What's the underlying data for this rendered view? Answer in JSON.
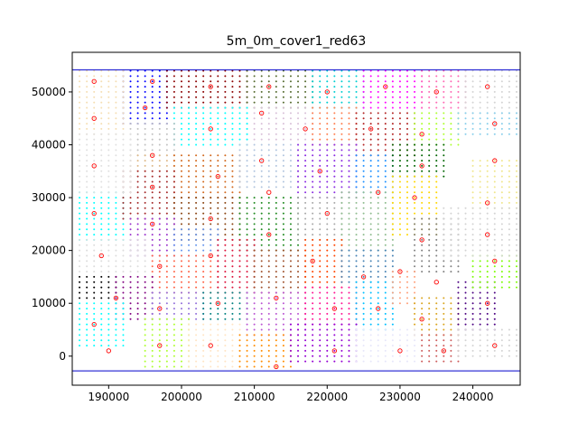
{
  "chart_data": {
    "type": "scatter",
    "title": "5m_0m_cover1_red63",
    "xlabel": "",
    "ylabel": "",
    "xlim": [
      185000,
      246500
    ],
    "ylim": [
      -5500,
      57500
    ],
    "x_ticks": [
      190000,
      200000,
      210000,
      220000,
      230000,
      240000
    ],
    "x_tick_labels": [
      "190000",
      "200000",
      "210000",
      "220000",
      "230000",
      "240000"
    ],
    "y_ticks": [
      0,
      10000,
      20000,
      30000,
      40000,
      50000
    ],
    "y_tick_labels": [
      "0",
      "10000",
      "20000",
      "30000",
      "40000",
      "50000"
    ],
    "grid": false,
    "legend": "none",
    "boundary_lines": {
      "y_values": [
        54200,
        -2800
      ],
      "color": "#0000cc"
    },
    "grid_spacing": 1000,
    "clusters": [
      {
        "color": "#0000ff",
        "x_range": [
          192000,
          198000
        ],
        "y_range": [
          44000,
          54000
        ]
      },
      {
        "color": "#8b0000",
        "x_range": [
          198000,
          209000
        ],
        "y_range": [
          47000,
          54000
        ]
      },
      {
        "color": "#556b2f",
        "x_range": [
          209000,
          218000
        ],
        "y_range": [
          47000,
          54000
        ]
      },
      {
        "color": "#00ced1",
        "x_range": [
          218000,
          225000
        ],
        "y_range": [
          47000,
          54000
        ]
      },
      {
        "color": "#ff00ff",
        "x_range": [
          225000,
          233000
        ],
        "y_range": [
          47000,
          54000
        ]
      },
      {
        "color": "#ff69b4",
        "x_range": [
          233000,
          239000
        ],
        "y_range": [
          47000,
          54000
        ]
      },
      {
        "color": "#d3d3d3",
        "x_range": [
          239000,
          246000
        ],
        "y_range": [
          46000,
          54000
        ]
      },
      {
        "color": "#f5deb3",
        "x_range": [
          186000,
          192000
        ],
        "y_range": [
          42000,
          54000
        ]
      },
      {
        "color": "#d8bfd8",
        "x_range": [
          209000,
          218000
        ],
        "y_range": [
          41000,
          47000
        ]
      },
      {
        "color": "#00ffff",
        "x_range": [
          199000,
          209000
        ],
        "y_range": [
          40000,
          47000
        ]
      },
      {
        "color": "#c0c0c0",
        "x_range": [
          193000,
          199000
        ],
        "y_range": [
          38000,
          44000
        ]
      },
      {
        "color": "#ff7f50",
        "x_range": [
          218000,
          224000
        ],
        "y_range": [
          40000,
          47000
        ]
      },
      {
        "color": "#b22222",
        "x_range": [
          224000,
          232000
        ],
        "y_range": [
          38000,
          46000
        ]
      },
      {
        "color": "#adff2f",
        "x_range": [
          232000,
          238000
        ],
        "y_range": [
          40000,
          46000
        ]
      },
      {
        "color": "#87ceeb",
        "x_range": [
          238000,
          246000
        ],
        "y_range": [
          42000,
          46000
        ]
      },
      {
        "color": "#deb887",
        "x_range": [
          193000,
          199000
        ],
        "y_range": [
          35000,
          38000
        ]
      },
      {
        "color": "#d2691e",
        "x_range": [
          199000,
          208000
        ],
        "y_range": [
          30000,
          38000
        ]
      },
      {
        "color": "#b0c4de",
        "x_range": [
          208000,
          216000
        ],
        "y_range": [
          32000,
          40000
        ]
      },
      {
        "color": "#8a2be2",
        "x_range": [
          216000,
          224000
        ],
        "y_range": [
          30000,
          40000
        ]
      },
      {
        "color": "#1e90ff",
        "x_range": [
          224000,
          229000
        ],
        "y_range": [
          31000,
          38000
        ]
      },
      {
        "color": "#006400",
        "x_range": [
          229000,
          236000
        ],
        "y_range": [
          34000,
          40000
        ]
      },
      {
        "color": "#f0e68c",
        "x_range": [
          240000,
          246000
        ],
        "y_range": [
          28000,
          37000
        ]
      },
      {
        "color": "#00ffff",
        "x_range": [
          186000,
          192000
        ],
        "y_range": [
          22000,
          31000
        ]
      },
      {
        "color": "#a52a2a",
        "x_range": [
          192000,
          199000
        ],
        "y_range": [
          26000,
          35000
        ]
      },
      {
        "color": "#8b4513",
        "x_range": [
          199000,
          208000
        ],
        "y_range": [
          22000,
          30000
        ]
      },
      {
        "color": "#9932cc",
        "x_range": [
          193000,
          199000
        ],
        "y_range": [
          19000,
          26000
        ]
      },
      {
        "color": "#6495ed",
        "x_range": [
          199000,
          205000
        ],
        "y_range": [
          19000,
          24000
        ]
      },
      {
        "color": "#228b22",
        "x_range": [
          208000,
          216000
        ],
        "y_range": [
          20000,
          30000
        ]
      },
      {
        "color": "#a9a9a9",
        "x_range": [
          216000,
          222000
        ],
        "y_range": [
          22000,
          30000
        ]
      },
      {
        "color": "#8fbc8f",
        "x_range": [
          222000,
          229000
        ],
        "y_range": [
          20000,
          31000
        ]
      },
      {
        "color": "#ffd700",
        "x_range": [
          229000,
          235000
        ],
        "y_range": [
          23000,
          34000
        ]
      },
      {
        "color": "#808080",
        "x_range": [
          232000,
          238000
        ],
        "y_range": [
          16000,
          26000
        ]
      },
      {
        "color": "#ff6347",
        "x_range": [
          196000,
          205000
        ],
        "y_range": [
          12000,
          19000
        ]
      },
      {
        "color": "#dc143c",
        "x_range": [
          205000,
          210000
        ],
        "y_range": [
          12000,
          22000
        ]
      },
      {
        "color": "#a0522d",
        "x_range": [
          210000,
          217000
        ],
        "y_range": [
          12000,
          20000
        ]
      },
      {
        "color": "#ff4500",
        "x_range": [
          217000,
          222000
        ],
        "y_range": [
          13000,
          22000
        ]
      },
      {
        "color": "#4682b4",
        "x_range": [
          222000,
          229000
        ],
        "y_range": [
          14000,
          20000
        ]
      },
      {
        "color": "#000000",
        "x_range": [
          186000,
          191000
        ],
        "y_range": [
          11000,
          15000
        ]
      },
      {
        "color": "#800080",
        "x_range": [
          191000,
          196000
        ],
        "y_range": [
          7000,
          15000
        ]
      },
      {
        "color": "#00ffff",
        "x_range": [
          186000,
          192000
        ],
        "y_range": [
          2000,
          10000
        ]
      },
      {
        "color": "#9370db",
        "x_range": [
          196000,
          203000
        ],
        "y_range": [
          7000,
          12000
        ]
      },
      {
        "color": "#008080",
        "x_range": [
          203000,
          209000
        ],
        "y_range": [
          7000,
          12000
        ]
      },
      {
        "color": "#ba55d3",
        "x_range": [
          209000,
          217000
        ],
        "y_range": [
          4000,
          12000
        ]
      },
      {
        "color": "#ff1493",
        "x_range": [
          217000,
          224000
        ],
        "y_range": [
          6000,
          13000
        ]
      },
      {
        "color": "#00bfff",
        "x_range": [
          224000,
          229000
        ],
        "y_range": [
          5000,
          14000
        ]
      },
      {
        "color": "#ffa07a",
        "x_range": [
          229000,
          232000
        ],
        "y_range": [
          10000,
          16000
        ]
      },
      {
        "color": "#daa520",
        "x_range": [
          232000,
          238000
        ],
        "y_range": [
          4000,
          11000
        ]
      },
      {
        "color": "#4b0082",
        "x_range": [
          238000,
          243000
        ],
        "y_range": [
          5000,
          14000
        ]
      },
      {
        "color": "#7cfc00",
        "x_range": [
          240000,
          246000
        ],
        "y_range": [
          13000,
          19000
        ]
      },
      {
        "color": "#adff2f",
        "x_range": [
          195000,
          201000
        ],
        "y_range": [
          -2000,
          7000
        ]
      },
      {
        "color": "#ffe4c4",
        "x_range": [
          201000,
          208000
        ],
        "y_range": [
          -2000,
          6000
        ]
      },
      {
        "color": "#ff8c00",
        "x_range": [
          208000,
          215000
        ],
        "y_range": [
          -2000,
          4000
        ]
      },
      {
        "color": "#9400d3",
        "x_range": [
          215000,
          224000
        ],
        "y_range": [
          -1000,
          6000
        ]
      },
      {
        "color": "#e6e6fa",
        "x_range": [
          224000,
          232000
        ],
        "y_range": [
          -1000,
          5000
        ]
      },
      {
        "color": "#cd5c5c",
        "x_range": [
          233000,
          238000
        ],
        "y_range": [
          -1000,
          4000
        ]
      },
      {
        "color": "#d3d3d3",
        "x_range": [
          238000,
          246000
        ],
        "y_range": [
          0,
          5000
        ]
      },
      {
        "color": "#dcdcdc",
        "x_range": [
          186000,
          195000
        ],
        "y_range": [
          16000,
          22000
        ]
      },
      {
        "color": "#d3d3d3",
        "x_range": [
          236000,
          246000
        ],
        "y_range": [
          19000,
          28000
        ]
      },
      {
        "color": "#e0e0e0",
        "x_range": [
          186000,
          193000
        ],
        "y_range": [
          31000,
          42000
        ]
      }
    ],
    "centroids": [
      [
        188000,
        52000
      ],
      [
        196000,
        52000
      ],
      [
        204000,
        51000
      ],
      [
        212000,
        51000
      ],
      [
        220000,
        50000
      ],
      [
        228000,
        51000
      ],
      [
        235000,
        50000
      ],
      [
        242000,
        51000
      ],
      [
        188000,
        45000
      ],
      [
        195000,
        47000
      ],
      [
        211000,
        46000
      ],
      [
        204000,
        43000
      ],
      [
        217000,
        43000
      ],
      [
        226000,
        43000
      ],
      [
        233000,
        42000
      ],
      [
        243000,
        44000
      ],
      [
        188000,
        36000
      ],
      [
        196000,
        38000
      ],
      [
        205000,
        34000
      ],
      [
        211000,
        37000
      ],
      [
        219000,
        35000
      ],
      [
        227000,
        31000
      ],
      [
        233000,
        36000
      ],
      [
        243000,
        37000
      ],
      [
        188000,
        27000
      ],
      [
        196000,
        32000
      ],
      [
        212000,
        31000
      ],
      [
        220000,
        27000
      ],
      [
        232000,
        30000
      ],
      [
        242000,
        29000
      ],
      [
        196000,
        25000
      ],
      [
        204000,
        26000
      ],
      [
        212000,
        23000
      ],
      [
        233000,
        22000
      ],
      [
        242000,
        23000
      ],
      [
        189000,
        19000
      ],
      [
        197000,
        17000
      ],
      [
        204000,
        19000
      ],
      [
        218000,
        18000
      ],
      [
        225000,
        15000
      ],
      [
        230000,
        16000
      ],
      [
        235000,
        14000
      ],
      [
        243000,
        18000
      ],
      [
        191000,
        11000
      ],
      [
        197000,
        9000
      ],
      [
        205000,
        10000
      ],
      [
        213000,
        11000
      ],
      [
        221000,
        9000
      ],
      [
        227000,
        9000
      ],
      [
        233000,
        7000
      ],
      [
        242000,
        10000
      ],
      [
        188000,
        6000
      ],
      [
        190000,
        1000
      ],
      [
        197000,
        2000
      ],
      [
        204000,
        2000
      ],
      [
        213000,
        -2000
      ],
      [
        221000,
        1000
      ],
      [
        230000,
        1000
      ],
      [
        236000,
        1000
      ],
      [
        243000,
        2000
      ]
    ],
    "centroid_color": "#ff0000"
  }
}
